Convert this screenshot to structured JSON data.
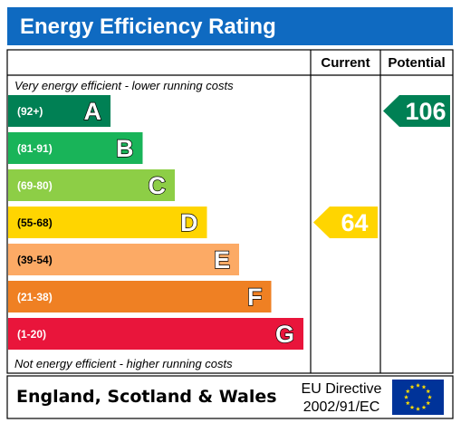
{
  "chart_data": {
    "type": "bar",
    "title": "Energy Efficiency Rating",
    "columns": [
      "Current",
      "Potential"
    ],
    "top_note": "Very energy efficient - lower running costs",
    "bottom_note": "Not energy efficient - higher running costs",
    "bands": [
      {
        "letter": "A",
        "range": "(92+)",
        "min": 92,
        "max": null,
        "color": "#008054"
      },
      {
        "letter": "B",
        "range": "(81-91)",
        "min": 81,
        "max": 91,
        "color": "#19b459"
      },
      {
        "letter": "C",
        "range": "(69-80)",
        "min": 69,
        "max": 80,
        "color": "#8dce46"
      },
      {
        "letter": "D",
        "range": "(55-68)",
        "min": 55,
        "max": 68,
        "color": "#ffd500"
      },
      {
        "letter": "E",
        "range": "(39-54)",
        "min": 39,
        "max": 54,
        "color": "#fcaa65"
      },
      {
        "letter": "F",
        "range": "(21-38)",
        "min": 21,
        "max": 38,
        "color": "#ef8023"
      },
      {
        "letter": "G",
        "range": "(1-20)",
        "min": 1,
        "max": 20,
        "color": "#e9153b"
      }
    ],
    "current": {
      "value": 64,
      "band": "D",
      "color": "#ffd500"
    },
    "potential": {
      "value": 106,
      "band": "A",
      "color": "#008054"
    }
  },
  "footer": {
    "region": "England, Scotland & Wales",
    "directive_line1": "EU Directive",
    "directive_line2": "2002/91/EC"
  },
  "colors": {
    "title_bg": "#0f6ac1",
    "eu_flag_bg": "#003399",
    "eu_star": "#ffdd00"
  }
}
